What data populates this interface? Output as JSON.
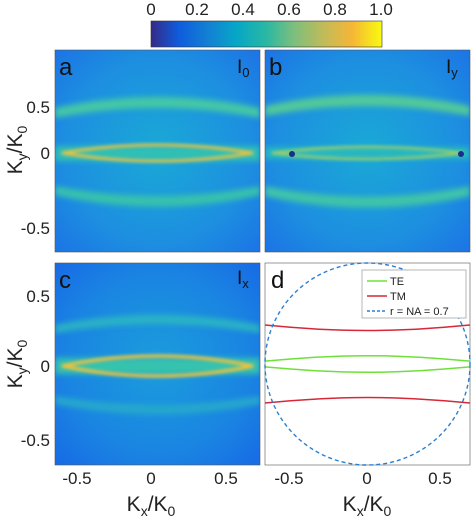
{
  "colorbar": {
    "ticks": [
      "0",
      "0.2",
      "0.4",
      "0.6",
      "0.8",
      "1.0"
    ]
  },
  "chart_data": [
    {
      "type": "heatmap",
      "panel": "a",
      "label": "I",
      "label_sub": "0",
      "xlim": [
        -0.7,
        0.7
      ],
      "ylim": [
        -0.7,
        0.7
      ],
      "clim": [
        0,
        1
      ],
      "colormap": "parula",
      "yticks": [
        "0.5",
        "0",
        "-0.5"
      ],
      "ylabel": "K",
      "ylabel_sub": "y",
      "ylabel_tail": "/K",
      "ylabel_tail_sub": "0",
      "features": {
        "horizontal_bands_ky": [
          0.43,
          -0.43
        ],
        "central_lens_ky": 0.0
      }
    },
    {
      "type": "heatmap",
      "panel": "b",
      "label": "I",
      "label_sub": "y",
      "xlim": [
        -0.7,
        0.7
      ],
      "ylim": [
        -0.7,
        0.7
      ],
      "clim": [
        0,
        1
      ],
      "colormap": "parula",
      "features": {
        "horizontal_bands_ky": [
          0.45,
          -0.45
        ],
        "central_lens_ky": 0.0
      }
    },
    {
      "type": "heatmap",
      "panel": "c",
      "label": "I",
      "label_sub": "x",
      "xlim": [
        -0.7,
        0.7
      ],
      "ylim": [
        -0.7,
        0.7
      ],
      "clim": [
        0,
        1
      ],
      "colormap": "parula",
      "xticks": [
        "-0.5",
        "0",
        "0.5"
      ],
      "yticks": [
        "0.5",
        "0",
        "-0.5"
      ],
      "xlabel": "K",
      "xlabel_sub": "x",
      "xlabel_tail": "/K",
      "xlabel_tail_sub": "0",
      "ylabel": "K",
      "ylabel_sub": "y",
      "ylabel_tail": "/K",
      "ylabel_tail_sub": "0",
      "features": {
        "horizontal_bands_ky": [
          0.38,
          -0.38
        ],
        "central_lens_ky": 0.0
      }
    },
    {
      "type": "line",
      "panel": "d",
      "xlim": [
        -0.7,
        0.7
      ],
      "ylim": [
        -0.7,
        0.7
      ],
      "xticks": [
        "-0.5",
        "0",
        "0.5"
      ],
      "xlabel": "K",
      "xlabel_sub": "x",
      "xlabel_tail": "/K",
      "xlabel_tail_sub": "0",
      "legend_position": "top-right",
      "series": [
        {
          "name": "TE",
          "color": "#6fe03a",
          "x": [
            -0.7,
            -0.35,
            0,
            0.35,
            0.7
          ],
          "upper": [
            0.02,
            0.05,
            0.06,
            0.05,
            0.02
          ],
          "lower": [
            -0.02,
            -0.05,
            -0.06,
            -0.05,
            -0.02
          ]
        },
        {
          "name": "TM",
          "color": "#d62839",
          "x": [
            -0.7,
            -0.35,
            0,
            0.35,
            0.7
          ],
          "upper": [
            0.27,
            0.24,
            0.23,
            0.24,
            0.27
          ],
          "lower": [
            -0.27,
            -0.24,
            -0.23,
            -0.24,
            -0.27
          ]
        },
        {
          "name": "r = NA = 0.7",
          "color": "#2b7fd0",
          "style": "dashed",
          "radius": 0.7
        }
      ]
    }
  ]
}
